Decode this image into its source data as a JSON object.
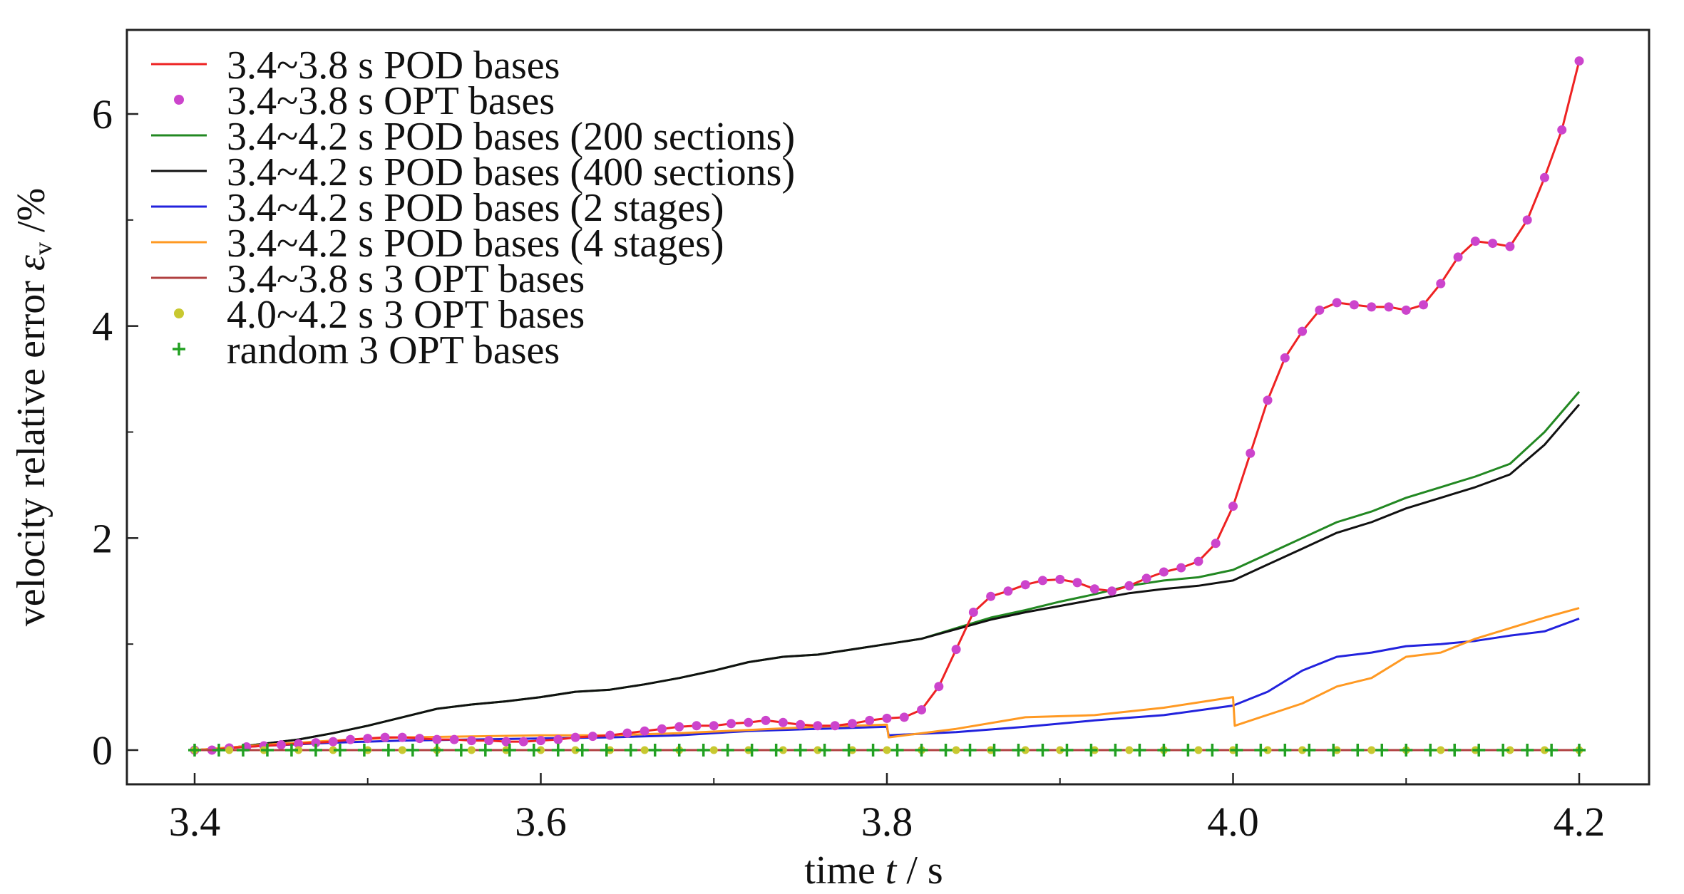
{
  "chart_data": {
    "type": "line",
    "xlabel_prefix": "time ",
    "xlabel_var": "t",
    "xlabel_suffix": " / s",
    "ylabel_prefix": "velocity relative error  ",
    "ylabel_symbol": "ε",
    "ylabel_sub": "v",
    "ylabel_suffix": " /%",
    "xlim": [
      3.37,
      4.22
    ],
    "ylim": [
      -0.33,
      6.8
    ],
    "xticks": [
      3.4,
      3.6,
      3.8,
      4.0,
      4.2
    ],
    "xtick_labels": [
      "3.4",
      "3.6",
      "3.8",
      "4.0",
      "4.2"
    ],
    "xminor": [
      3.5,
      3.7,
      3.9,
      4.1
    ],
    "yticks": [
      0,
      2,
      4,
      6
    ],
    "ytick_labels": [
      "0",
      "2",
      "4",
      "6"
    ],
    "yminor": [
      1,
      3,
      5
    ],
    "grid": false,
    "legend_position": "top-left",
    "series": [
      {
        "name": "3.4~3.8 s POD bases",
        "color": "#ee2222",
        "style": "line",
        "x": [
          3.4,
          3.41,
          3.42,
          3.43,
          3.44,
          3.45,
          3.46,
          3.47,
          3.48,
          3.49,
          3.5,
          3.51,
          3.52,
          3.53,
          3.54,
          3.55,
          3.56,
          3.57,
          3.58,
          3.59,
          3.6,
          3.61,
          3.62,
          3.63,
          3.64,
          3.65,
          3.66,
          3.67,
          3.68,
          3.69,
          3.7,
          3.71,
          3.72,
          3.73,
          3.74,
          3.75,
          3.76,
          3.77,
          3.78,
          3.79,
          3.8,
          3.81,
          3.82,
          3.83,
          3.84,
          3.85,
          3.86,
          3.87,
          3.88,
          3.89,
          3.9,
          3.91,
          3.92,
          3.93,
          3.94,
          3.95,
          3.96,
          3.97,
          3.98,
          3.99,
          4.0,
          4.01,
          4.02,
          4.03,
          4.04,
          4.05,
          4.06,
          4.07,
          4.08,
          4.09,
          4.1,
          4.11,
          4.12,
          4.13,
          4.14,
          4.15,
          4.16,
          4.17,
          4.18,
          4.19,
          4.2
        ],
        "y": [
          0.0,
          0.0,
          0.02,
          0.03,
          0.04,
          0.05,
          0.06,
          0.07,
          0.08,
          0.1,
          0.11,
          0.12,
          0.12,
          0.11,
          0.1,
          0.1,
          0.09,
          0.09,
          0.08,
          0.08,
          0.09,
          0.1,
          0.12,
          0.13,
          0.14,
          0.16,
          0.18,
          0.2,
          0.22,
          0.23,
          0.23,
          0.25,
          0.26,
          0.28,
          0.26,
          0.24,
          0.23,
          0.23,
          0.25,
          0.28,
          0.3,
          0.31,
          0.38,
          0.6,
          0.95,
          1.3,
          1.45,
          1.5,
          1.56,
          1.6,
          1.61,
          1.58,
          1.52,
          1.5,
          1.55,
          1.62,
          1.68,
          1.72,
          1.78,
          1.95,
          2.3,
          2.8,
          3.3,
          3.7,
          3.95,
          4.15,
          4.22,
          4.2,
          4.18,
          4.18,
          4.15,
          4.2,
          4.4,
          4.65,
          4.8,
          4.78,
          4.75,
          5.0,
          5.4,
          5.85,
          6.5
        ]
      },
      {
        "name": "3.4~3.8 s OPT bases",
        "color": "#cc44cc",
        "style": "dots",
        "x": [
          3.4,
          3.41,
          3.42,
          3.43,
          3.44,
          3.45,
          3.46,
          3.47,
          3.48,
          3.49,
          3.5,
          3.51,
          3.52,
          3.53,
          3.54,
          3.55,
          3.56,
          3.57,
          3.58,
          3.59,
          3.6,
          3.61,
          3.62,
          3.63,
          3.64,
          3.65,
          3.66,
          3.67,
          3.68,
          3.69,
          3.7,
          3.71,
          3.72,
          3.73,
          3.74,
          3.75,
          3.76,
          3.77,
          3.78,
          3.79,
          3.8,
          3.81,
          3.82,
          3.83,
          3.84,
          3.85,
          3.86,
          3.87,
          3.88,
          3.89,
          3.9,
          3.91,
          3.92,
          3.93,
          3.94,
          3.95,
          3.96,
          3.97,
          3.98,
          3.99,
          4.0,
          4.01,
          4.02,
          4.03,
          4.04,
          4.05,
          4.06,
          4.07,
          4.08,
          4.09,
          4.1,
          4.11,
          4.12,
          4.13,
          4.14,
          4.15,
          4.16,
          4.17,
          4.18,
          4.19,
          4.2
        ],
        "y": [
          0.0,
          0.0,
          0.02,
          0.03,
          0.04,
          0.05,
          0.06,
          0.07,
          0.08,
          0.1,
          0.11,
          0.12,
          0.12,
          0.11,
          0.1,
          0.1,
          0.09,
          0.09,
          0.08,
          0.08,
          0.09,
          0.1,
          0.12,
          0.13,
          0.14,
          0.16,
          0.18,
          0.2,
          0.22,
          0.23,
          0.23,
          0.25,
          0.26,
          0.28,
          0.26,
          0.24,
          0.23,
          0.23,
          0.25,
          0.28,
          0.3,
          0.31,
          0.38,
          0.6,
          0.95,
          1.3,
          1.45,
          1.5,
          1.56,
          1.6,
          1.61,
          1.58,
          1.52,
          1.5,
          1.55,
          1.62,
          1.68,
          1.72,
          1.78,
          1.95,
          2.3,
          2.8,
          3.3,
          3.7,
          3.95,
          4.15,
          4.22,
          4.2,
          4.18,
          4.18,
          4.15,
          4.2,
          4.4,
          4.65,
          4.8,
          4.78,
          4.75,
          5.0,
          5.4,
          5.85,
          6.5
        ]
      },
      {
        "name": "3.4~4.2 s POD bases (200 sections)",
        "color": "#228822",
        "style": "line",
        "x": [
          3.4,
          3.42,
          3.44,
          3.46,
          3.48,
          3.5,
          3.52,
          3.54,
          3.56,
          3.58,
          3.6,
          3.62,
          3.64,
          3.66,
          3.68,
          3.7,
          3.72,
          3.74,
          3.76,
          3.78,
          3.8,
          3.82,
          3.84,
          3.86,
          3.88,
          3.9,
          3.92,
          3.94,
          3.96,
          3.98,
          4.0,
          4.02,
          4.04,
          4.06,
          4.08,
          4.1,
          4.12,
          4.14,
          4.16,
          4.18,
          4.2
        ],
        "y": [
          0.0,
          0.02,
          0.06,
          0.1,
          0.16,
          0.23,
          0.31,
          0.39,
          0.43,
          0.46,
          0.5,
          0.55,
          0.57,
          0.62,
          0.68,
          0.75,
          0.83,
          0.88,
          0.9,
          0.95,
          1.0,
          1.05,
          1.15,
          1.25,
          1.32,
          1.4,
          1.47,
          1.55,
          1.6,
          1.63,
          1.7,
          1.85,
          2.0,
          2.15,
          2.25,
          2.38,
          2.48,
          2.58,
          2.7,
          3.0,
          3.38
        ]
      },
      {
        "name": "3.4~4.2 s POD bases (400 sections)",
        "color": "#111111",
        "style": "line",
        "x": [
          3.4,
          3.42,
          3.44,
          3.46,
          3.48,
          3.5,
          3.52,
          3.54,
          3.56,
          3.58,
          3.6,
          3.62,
          3.64,
          3.66,
          3.68,
          3.7,
          3.72,
          3.74,
          3.76,
          3.78,
          3.8,
          3.82,
          3.84,
          3.86,
          3.88,
          3.9,
          3.92,
          3.94,
          3.96,
          3.98,
          4.0,
          4.02,
          4.04,
          4.06,
          4.08,
          4.1,
          4.12,
          4.14,
          4.16,
          4.18,
          4.2
        ],
        "y": [
          0.0,
          0.02,
          0.06,
          0.1,
          0.16,
          0.23,
          0.31,
          0.39,
          0.43,
          0.46,
          0.5,
          0.55,
          0.57,
          0.62,
          0.68,
          0.75,
          0.83,
          0.88,
          0.9,
          0.95,
          1.0,
          1.05,
          1.14,
          1.23,
          1.3,
          1.36,
          1.42,
          1.48,
          1.52,
          1.55,
          1.6,
          1.75,
          1.9,
          2.05,
          2.15,
          2.28,
          2.38,
          2.48,
          2.6,
          2.88,
          3.26
        ]
      },
      {
        "name": "3.4~4.2 s POD bases (2 stages)",
        "color": "#2222dd",
        "style": "line",
        "x": [
          3.4,
          3.44,
          3.48,
          3.52,
          3.56,
          3.6,
          3.64,
          3.68,
          3.72,
          3.76,
          3.8,
          3.801,
          3.84,
          3.88,
          3.92,
          3.96,
          4.0,
          4.02,
          4.04,
          4.06,
          4.08,
          4.1,
          4.12,
          4.14,
          4.16,
          4.18,
          4.2
        ],
        "y": [
          0.0,
          0.04,
          0.07,
          0.09,
          0.1,
          0.11,
          0.12,
          0.14,
          0.18,
          0.2,
          0.22,
          0.14,
          0.17,
          0.22,
          0.28,
          0.33,
          0.42,
          0.55,
          0.75,
          0.88,
          0.92,
          0.98,
          1.0,
          1.03,
          1.08,
          1.12,
          1.24
        ]
      },
      {
        "name": "3.4~4.2 s POD bases (4 stages)",
        "color": "#ff9922",
        "style": "line",
        "x": [
          3.4,
          3.44,
          3.48,
          3.52,
          3.56,
          3.6,
          3.64,
          3.68,
          3.72,
          3.76,
          3.8,
          3.801,
          3.84,
          3.88,
          3.92,
          3.96,
          4.0,
          4.001,
          4.04,
          4.06,
          4.08,
          4.1,
          4.12,
          4.14,
          4.16,
          4.18,
          4.2
        ],
        "y": [
          0.0,
          0.05,
          0.09,
          0.12,
          0.13,
          0.14,
          0.14,
          0.16,
          0.19,
          0.22,
          0.24,
          0.12,
          0.2,
          0.31,
          0.33,
          0.4,
          0.5,
          0.23,
          0.44,
          0.6,
          0.68,
          0.88,
          0.92,
          1.05,
          1.15,
          1.25,
          1.34
        ]
      },
      {
        "name": "3.4~3.8 s 3 OPT bases",
        "color": "#b04040",
        "style": "line",
        "x": [
          3.4,
          4.2
        ],
        "y": [
          0.0,
          0.0
        ]
      },
      {
        "name": "4.0~4.2 s 3 OPT bases",
        "color": "#c8c830",
        "style": "dots",
        "x": [
          3.4,
          3.42,
          3.44,
          3.46,
          3.48,
          3.5,
          3.52,
          3.54,
          3.56,
          3.58,
          3.6,
          3.62,
          3.64,
          3.66,
          3.68,
          3.7,
          3.72,
          3.74,
          3.76,
          3.78,
          3.8,
          3.82,
          3.84,
          3.86,
          3.88,
          3.9,
          3.92,
          3.94,
          3.96,
          3.98,
          4.0,
          4.02,
          4.04,
          4.06,
          4.08,
          4.1,
          4.12,
          4.14,
          4.16,
          4.18,
          4.2
        ],
        "y": [
          0,
          0,
          0,
          0,
          0,
          0,
          0,
          0,
          0,
          0,
          0,
          0,
          0,
          0,
          0,
          0,
          0,
          0,
          0,
          0,
          0,
          0,
          0,
          0,
          0,
          0,
          0,
          0,
          0,
          0,
          0,
          0,
          0,
          0,
          0,
          0,
          0,
          0,
          0,
          0,
          0
        ]
      },
      {
        "name": "random 3 OPT bases",
        "color": "#22a022",
        "style": "plus",
        "x": [
          3.4,
          3.414,
          3.428,
          3.442,
          3.456,
          3.47,
          3.484,
          3.498,
          3.512,
          3.526,
          3.54,
          3.554,
          3.568,
          3.582,
          3.596,
          3.61,
          3.624,
          3.638,
          3.652,
          3.666,
          3.68,
          3.694,
          3.708,
          3.722,
          3.736,
          3.75,
          3.764,
          3.778,
          3.792,
          3.806,
          3.82,
          3.834,
          3.848,
          3.862,
          3.876,
          3.89,
          3.904,
          3.918,
          3.932,
          3.946,
          3.96,
          3.974,
          3.988,
          4.002,
          4.016,
          4.03,
          4.044,
          4.058,
          4.072,
          4.086,
          4.1,
          4.114,
          4.128,
          4.142,
          4.156,
          4.17,
          4.184,
          4.2
        ],
        "y": [
          0,
          0,
          0,
          0,
          0,
          0,
          0,
          0,
          0,
          0,
          0,
          0,
          0,
          0,
          0,
          0,
          0,
          0,
          0,
          0,
          0,
          0,
          0,
          0,
          0,
          0,
          0,
          0,
          0,
          0,
          0,
          0,
          0,
          0,
          0,
          0,
          0,
          0,
          0,
          0,
          0,
          0,
          0,
          0,
          0,
          0,
          0,
          0,
          0,
          0,
          0,
          0,
          0,
          0,
          0,
          0,
          0,
          0
        ]
      }
    ]
  }
}
